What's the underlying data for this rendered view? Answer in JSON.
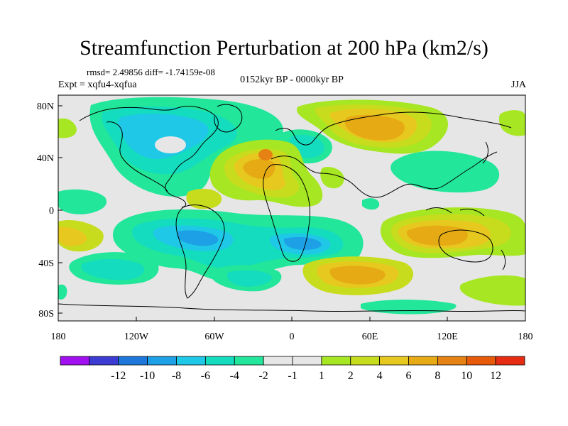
{
  "title": "Streamfunction Perturbation at 200 hPa (km2/s)",
  "stats": "rmsd= 2.49856 diff= -1.74159e-08",
  "experiment": "Expt = xqfu4-xqfua",
  "period": "0152kyr BP - 0000kyr BP",
  "season": "JJA",
  "y_ticks": [
    "80N",
    "40N",
    "0",
    "40S",
    "80S"
  ],
  "x_ticks": [
    "180",
    "120W",
    "60W",
    "0",
    "60E",
    "120E",
    "180"
  ],
  "colorbar": {
    "colors": [
      "#a010f0",
      "#3c3cd2",
      "#1e78dc",
      "#1ea0e6",
      "#1ec8e6",
      "#14dcbe",
      "#22e69a",
      "#e6e6e6",
      "#e6e6e6",
      "#a6e622",
      "#c8dc1e",
      "#e6c81e",
      "#e6aa14",
      "#e68214",
      "#e65a0a",
      "#e62d14"
    ],
    "labels": [
      "-12",
      "-10",
      "-8",
      "-6",
      "-4",
      "-2",
      "-1",
      "1",
      "2",
      "4",
      "6",
      "8",
      "10",
      "12"
    ]
  },
  "map": {
    "background_color": "#e6e6e6",
    "coastline_color": "#000000"
  }
}
